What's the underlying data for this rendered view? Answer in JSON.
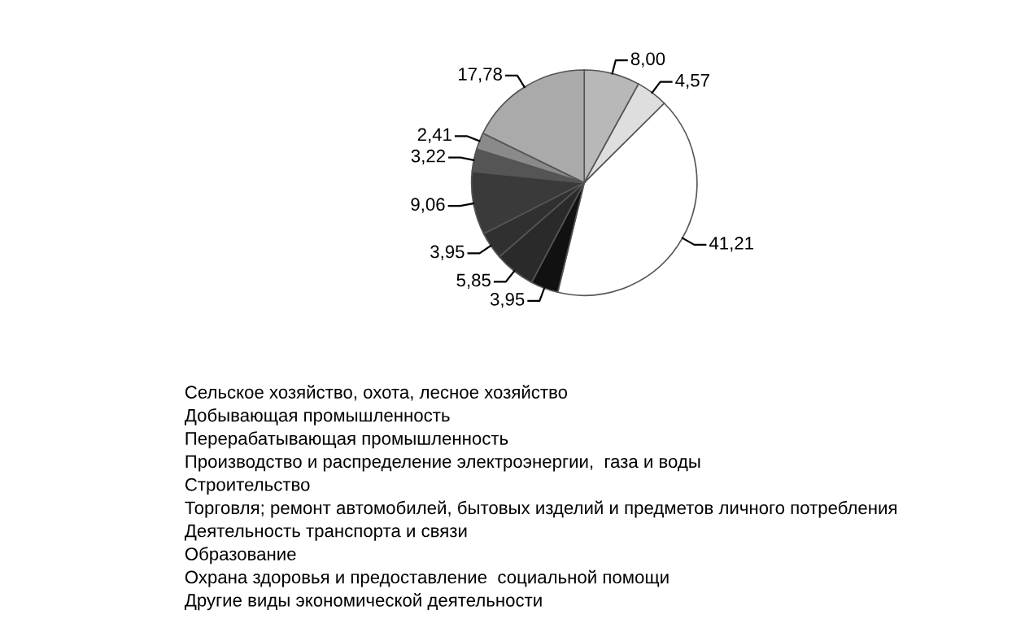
{
  "chart_data": {
    "type": "pie",
    "categories": [
      null,
      null,
      null,
      null,
      null,
      null,
      null,
      null,
      null,
      null
    ],
    "values": [
      8.0,
      4.57,
      41.21,
      3.95,
      5.85,
      3.95,
      9.06,
      3.22,
      2.41,
      17.78
    ],
    "value_labels": [
      "8,00",
      "4,57",
      "41,21",
      "3,95",
      "5,85",
      "3,95",
      "9,06",
      "3,22",
      "2,41",
      "17,78"
    ],
    "colors": [
      "#b8b8b8",
      "#dedede",
      "#ffffff",
      "#111111",
      "#2a2a2a",
      "#303030",
      "#3a3a3a",
      "#555555",
      "#8a8a8a",
      "#aaaaaa"
    ],
    "annotations": [
      "Сельское хозяйство, охота, лесное хозяйство",
      "Добывающая промышленность",
      "Перерабатывающая промышленность",
      "Производство и распределение электроэнергии,  газа и воды",
      "Строительство",
      "Торговля; ремонт автомобилей, бытовых изделий и предметов личного потребления",
      "Деятельность транспорта и связи",
      "Образование",
      "Охрана здоровья и предоставление  социальной помощи",
      "Другие виды экономической деятельности"
    ]
  }
}
